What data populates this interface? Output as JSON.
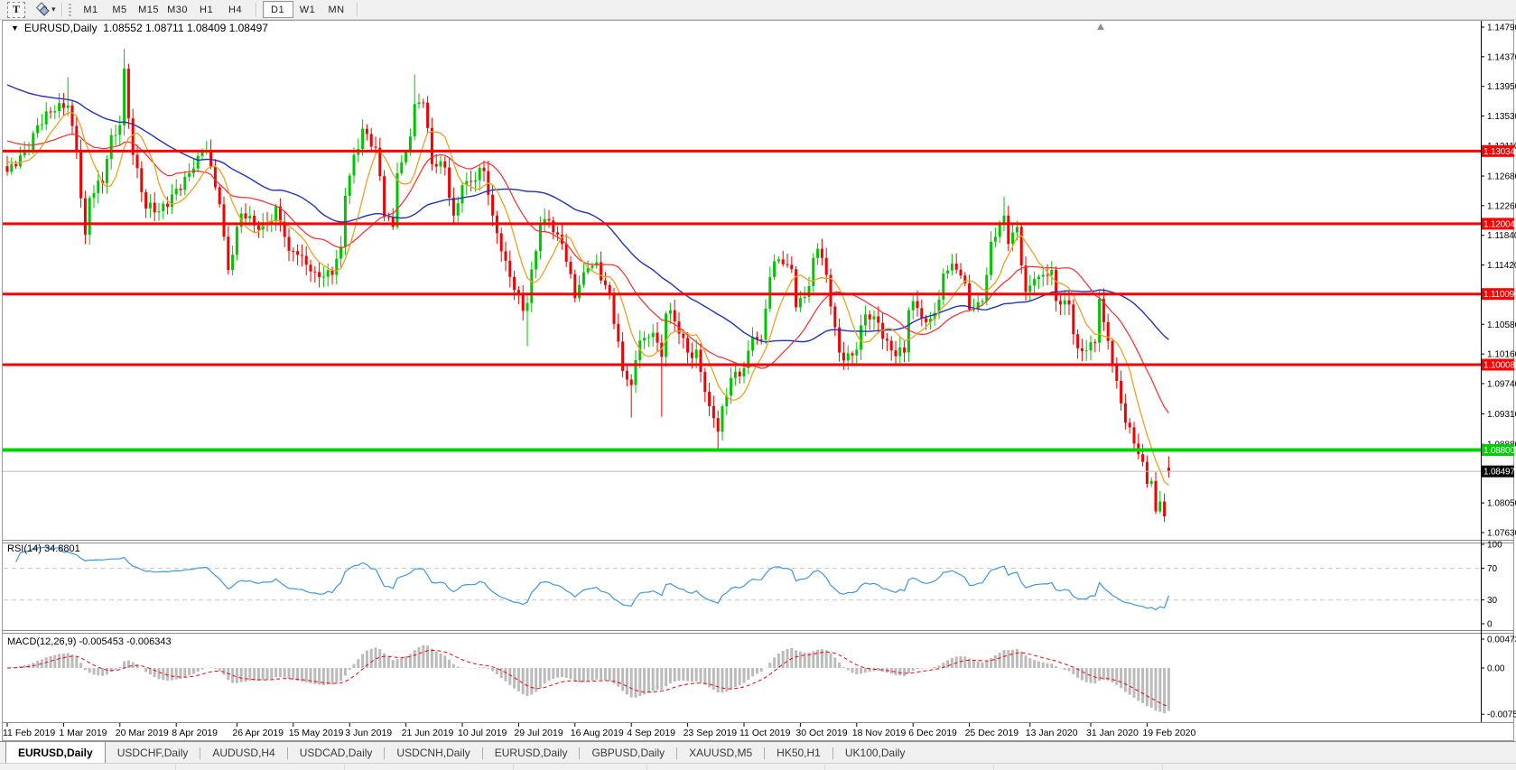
{
  "toolbar": {
    "text_tool_label": "T",
    "dropdown_caret": "▾",
    "timeframes": [
      {
        "label": "M1"
      },
      {
        "label": "M5"
      },
      {
        "label": "M15"
      },
      {
        "label": "M30"
      },
      {
        "label": "H1"
      },
      {
        "label": "H4"
      },
      {
        "sep": true
      },
      {
        "label": "D1",
        "active": true
      },
      {
        "label": "W1"
      },
      {
        "label": "MN"
      },
      {
        "sep": true
      }
    ]
  },
  "window": {
    "menu_marker": "▼",
    "symbol_title": "EURUSD,Daily",
    "open": "1.08552",
    "high": "1.08711",
    "low": "1.08409",
    "close": "1.08497"
  },
  "indicators": {
    "rsi_label": "RSI(14) 34.8801",
    "macd_label": "MACD(12,26,9) -0.005453 -0.006343"
  },
  "axes": {
    "price_ticks": [
      "1.14790",
      "1.14370",
      "1.13950",
      "1.13530",
      "1.13110",
      "1.12680",
      "1.12260",
      "1.11840",
      "1.11420",
      "1.10580",
      "1.10160",
      "1.09740",
      "1.09310",
      "1.08880",
      "1.08050",
      "1.07630"
    ],
    "rsi_ticks": [
      {
        "label": "100",
        "value": 100
      },
      {
        "label": "70",
        "value": 70
      },
      {
        "label": "30",
        "value": 30
      },
      {
        "label": "0",
        "value": 0
      }
    ],
    "rsi_dashed_levels": [
      70,
      30
    ],
    "macd_ticks": [
      {
        "label": "0.004738",
        "value": 0.004738
      },
      {
        "label": "0.00",
        "value": 0
      },
      {
        "label": "-0.00758",
        "value": -0.00758
      }
    ],
    "date_ticks": [
      {
        "label": "11 Feb 2019",
        "i": 0
      },
      {
        "label": "1 Mar 2019",
        "i": 13
      },
      {
        "label": "20 Mar 2019",
        "i": 26
      },
      {
        "label": "8 Apr 2019",
        "i": 39
      },
      {
        "label": "26 Apr 2019",
        "i": 53
      },
      {
        "label": "15 May 2019",
        "i": 66
      },
      {
        "label": "3 Jun 2019",
        "i": 79
      },
      {
        "label": "21 Jun 2019",
        "i": 92
      },
      {
        "label": "10 Jul 2019",
        "i": 105
      },
      {
        "label": "29 Jul 2019",
        "i": 118
      },
      {
        "label": "16 Aug 2019",
        "i": 131
      },
      {
        "label": "4 Sep 2019",
        "i": 144
      },
      {
        "label": "23 Sep 2019",
        "i": 157
      },
      {
        "label": "11 Oct 2019",
        "i": 170
      },
      {
        "label": "30 Oct 2019",
        "i": 183
      },
      {
        "label": "18 Nov 2019",
        "i": 196
      },
      {
        "label": "6 Dec 2019",
        "i": 209
      },
      {
        "label": "25 Dec 2019",
        "i": 222
      },
      {
        "label": "13 Jan 2020",
        "i": 236
      },
      {
        "label": "31 Jan 2020",
        "i": 250
      },
      {
        "label": "19 Feb 2020",
        "i": 263
      }
    ]
  },
  "levels": {
    "resistance": [
      {
        "label": "1.13034",
        "price": 1.13034
      },
      {
        "label": "1.12004",
        "price": 1.12004
      },
      {
        "label": "1.11009",
        "price": 1.11009
      },
      {
        "label": "1.10008",
        "price": 1.10008
      }
    ],
    "support_green": {
      "label": "1.08800",
      "price": 1.088
    },
    "current_price": {
      "label": "1.08497",
      "price": 1.08497
    }
  },
  "tabs": [
    {
      "label": "EURUSD,Daily",
      "active": true
    },
    {
      "label": "USDCHF,Daily"
    },
    {
      "label": "AUDUSD,H4"
    },
    {
      "label": "USDCAD,Daily"
    },
    {
      "label": "USDCNH,Daily"
    },
    {
      "label": "EURUSD,Daily"
    },
    {
      "label": "GBPUSD,Daily"
    },
    {
      "label": "XAUUSD,M5"
    },
    {
      "label": "HK50,H1"
    },
    {
      "label": "UK100,Daily"
    }
  ],
  "colors": {
    "bull": "#00C500",
    "bear": "#F40000",
    "ma_fast": "#F0A020",
    "ma_mid": "#FF2A2A",
    "ma_slow": "#2233BB",
    "rsi_line": "#3F97DD",
    "rsi_dash": "#c8c8c8",
    "macd_hist": "#BBBBBB",
    "macd_signal": "#FF0000",
    "level_red": "#FF0000",
    "level_green": "#00D300",
    "current_line": "#BBBBBB",
    "axis_line": "#000000",
    "panel_border": "#8c8c8c",
    "shift_marker": "#909090"
  },
  "chart_data": {
    "type": "candlestick",
    "symbol": "EURUSD",
    "timeframe": "Daily",
    "n_candles": 269,
    "price_axis_range": [
      1.0763,
      1.1479
    ],
    "last_ohlc": {
      "open": 1.08552,
      "high": 1.08711,
      "low": 1.08409,
      "close": 1.08497
    },
    "horizontal_lines": [
      1.13034,
      1.12004,
      1.11009,
      1.10008,
      1.088
    ],
    "rsi_period": 14,
    "rsi_value": 34.8801,
    "macd_params": "12,26,9",
    "macd_value": -0.005453,
    "macd_signal_value": -0.006343,
    "macd_axis_range": [
      -0.00758,
      0.004738
    ],
    "close_anchors": [
      [
        0,
        1.1274
      ],
      [
        4,
        1.1302
      ],
      [
        7,
        1.134
      ],
      [
        11,
        1.136
      ],
      [
        14,
        1.1368
      ],
      [
        16,
        1.1305
      ],
      [
        18,
        1.1185
      ],
      [
        19,
        1.1237
      ],
      [
        22,
        1.1258
      ],
      [
        24,
        1.1326
      ],
      [
        26,
        1.134
      ],
      [
        27,
        1.142
      ],
      [
        29,
        1.1298
      ],
      [
        32,
        1.1222
      ],
      [
        35,
        1.1218
      ],
      [
        38,
        1.1242
      ],
      [
        42,
        1.1272
      ],
      [
        46,
        1.1305
      ],
      [
        49,
        1.1228
      ],
      [
        51,
        1.1135
      ],
      [
        54,
        1.1215
      ],
      [
        57,
        1.1198
      ],
      [
        60,
        1.1202
      ],
      [
        62,
        1.1225
      ],
      [
        65,
        1.1162
      ],
      [
        68,
        1.1155
      ],
      [
        71,
        1.1132
      ],
      [
        75,
        1.1128
      ],
      [
        77,
        1.1168
      ],
      [
        78,
        1.124
      ],
      [
        80,
        1.1298
      ],
      [
        82,
        1.1335
      ],
      [
        85,
        1.1308
      ],
      [
        87,
        1.121
      ],
      [
        89,
        1.1196
      ],
      [
        90,
        1.1272
      ],
      [
        92,
        1.1302
      ],
      [
        94,
        1.137
      ],
      [
        96,
        1.1372
      ],
      [
        98,
        1.1285
      ],
      [
        101,
        1.128
      ],
      [
        103,
        1.1212
      ],
      [
        105,
        1.1255
      ],
      [
        108,
        1.1262
      ],
      [
        110,
        1.1275
      ],
      [
        112,
        1.1212
      ],
      [
        115,
        1.1148
      ],
      [
        119,
        1.1077
      ],
      [
        120,
        1.1088
      ],
      [
        123,
        1.12
      ],
      [
        125,
        1.1205
      ],
      [
        128,
        1.1172
      ],
      [
        131,
        1.1095
      ],
      [
        134,
        1.1138
      ],
      [
        136,
        1.1146
      ],
      [
        139,
        1.11
      ],
      [
        142,
        1.0992
      ],
      [
        144,
        1.0972
      ],
      [
        146,
        1.1035
      ],
      [
        149,
        1.1046
      ],
      [
        151,
        1.1012
      ],
      [
        152,
        1.1073
      ],
      [
        154,
        1.1062
      ],
      [
        157,
        1.1018
      ],
      [
        159,
        1.1022
      ],
      [
        162,
        1.0942
      ],
      [
        164,
        1.0906
      ],
      [
        167,
        1.0982
      ],
      [
        170,
        1.0996
      ],
      [
        172,
        1.104
      ],
      [
        174,
        1.1036
      ],
      [
        176,
        1.1125
      ],
      [
        178,
        1.115
      ],
      [
        181,
        1.1136
      ],
      [
        182,
        1.1082
      ],
      [
        185,
        1.1112
      ],
      [
        186,
        1.1152
      ],
      [
        187,
        1.1165
      ],
      [
        189,
        1.1128
      ],
      [
        192,
        1.1018
      ],
      [
        195,
        1.1014
      ],
      [
        196,
        1.1022
      ],
      [
        198,
        1.1072
      ],
      [
        201,
        1.106
      ],
      [
        204,
        1.1021
      ],
      [
        207,
        1.1018
      ],
      [
        208,
        1.1078
      ],
      [
        210,
        1.1081
      ],
      [
        212,
        1.1061
      ],
      [
        215,
        1.1093
      ],
      [
        216,
        1.113
      ],
      [
        218,
        1.1144
      ],
      [
        221,
        1.1116
      ],
      [
        222,
        1.1079
      ],
      [
        225,
        1.1091
      ],
      [
        227,
        1.1175
      ],
      [
        229,
        1.1199
      ],
      [
        230,
        1.1212
      ],
      [
        231,
        1.1172
      ],
      [
        233,
        1.1196
      ],
      [
        235,
        1.1104
      ],
      [
        237,
        1.1122
      ],
      [
        239,
        1.1128
      ],
      [
        241,
        1.1135
      ],
      [
        242,
        1.1091
      ],
      [
        245,
        1.1086
      ],
      [
        247,
        1.1024
      ],
      [
        249,
        1.1021
      ],
      [
        251,
        1.1032
      ],
      [
        252,
        1.1094
      ],
      [
        253,
        1.1061
      ],
      [
        255,
        1.1001
      ],
      [
        257,
        1.0946
      ],
      [
        259,
        1.0912
      ],
      [
        261,
        1.0874
      ],
      [
        263,
        1.0832
      ],
      [
        264,
        1.0836
      ],
      [
        265,
        1.0793
      ],
      [
        266,
        1.0807
      ],
      [
        267,
        1.0786
      ],
      [
        268,
        1.085
      ]
    ],
    "wick_overrides": [
      {
        "i": 14,
        "side": "high",
        "price": 1.1408
      },
      {
        "i": 27,
        "side": "high",
        "price": 1.1448
      },
      {
        "i": 94,
        "side": "high",
        "price": 1.1412
      },
      {
        "i": 120,
        "side": "low",
        "price": 1.1027
      },
      {
        "i": 144,
        "side": "low",
        "price": 1.0926
      },
      {
        "i": 151,
        "side": "low",
        "price": 1.0927
      },
      {
        "i": 164,
        "side": "low",
        "price": 1.0879
      },
      {
        "i": 230,
        "side": "high",
        "price": 1.1239
      },
      {
        "i": 267,
        "side": "low",
        "price": 1.0778
      }
    ],
    "ma_periods": {
      "fast": 8,
      "mid": 21,
      "slow": 45
    },
    "ma_prehistory": {
      "fast": 1.129,
      "mid": 1.132,
      "slow": 1.14
    }
  }
}
